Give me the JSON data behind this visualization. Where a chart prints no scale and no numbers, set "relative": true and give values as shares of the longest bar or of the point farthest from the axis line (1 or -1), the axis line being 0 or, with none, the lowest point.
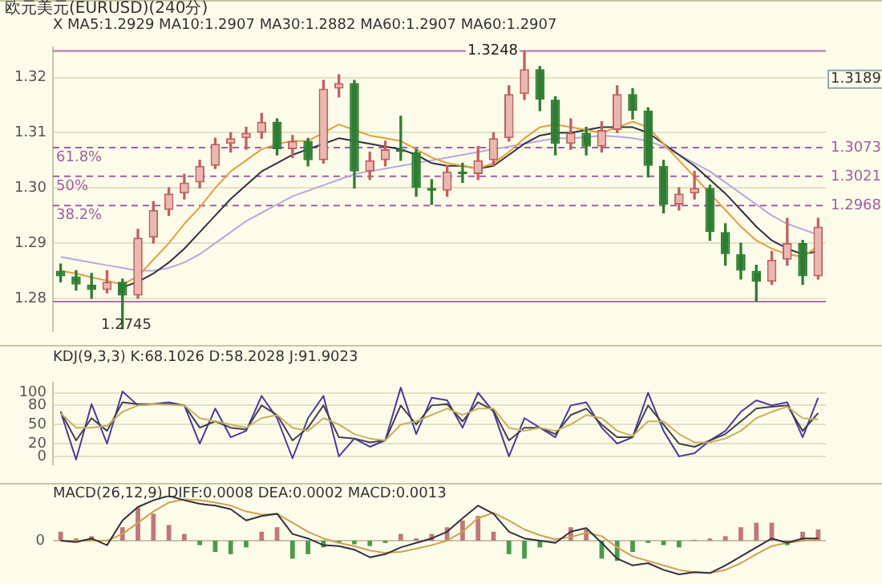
{
  "chart_data": [
    {
      "type": "candlestick",
      "title": "欧元美元(EURUSD)(240分)",
      "subtitle": "X MA5:1.2929 MA10:1.2907 MA30:1.2882 MA60:1.2907 MA60:1.2907",
      "categories": [
        null,
        null,
        null,
        null,
        null,
        null,
        null,
        null,
        null,
        null,
        null,
        null,
        null,
        null,
        null,
        null,
        null,
        null,
        null,
        null,
        null,
        null,
        null,
        null,
        null,
        null,
        null,
        null,
        null,
        null,
        null,
        null,
        null,
        null,
        null,
        null,
        null,
        null,
        null,
        null,
        null,
        null,
        null,
        null,
        null,
        null,
        null,
        null,
        null,
        null
      ],
      "ohlc": [
        [
          1.285,
          1.2862,
          1.283,
          1.284
        ],
        [
          1.284,
          1.285,
          1.2815,
          1.2825
        ],
        [
          1.2825,
          1.2845,
          1.28,
          1.2815
        ],
        [
          1.2815,
          1.285,
          1.281,
          1.283
        ],
        [
          1.283,
          1.2835,
          1.2745,
          1.2805
        ],
        [
          1.2805,
          1.2925,
          1.28,
          1.291
        ],
        [
          1.291,
          1.2975,
          1.29,
          1.296
        ],
        [
          1.296,
          1.3,
          1.295,
          1.299
        ],
        [
          1.299,
          1.3025,
          1.298,
          1.301
        ],
        [
          1.301,
          1.305,
          1.3,
          1.304
        ],
        [
          1.304,
          1.309,
          1.3035,
          1.308
        ],
        [
          1.308,
          1.31,
          1.3065,
          1.309
        ],
        [
          1.309,
          1.311,
          1.307,
          1.31
        ],
        [
          1.31,
          1.3135,
          1.309,
          1.312
        ],
        [
          1.312,
          1.3125,
          1.306,
          1.307
        ],
        [
          1.307,
          1.3095,
          1.3055,
          1.3085
        ],
        [
          1.3085,
          1.309,
          1.304,
          1.305
        ],
        [
          1.305,
          1.3195,
          1.3045,
          1.318
        ],
        [
          1.318,
          1.3205,
          1.3165,
          1.319
        ],
        [
          1.319,
          1.3195,
          1.3,
          1.303
        ],
        [
          1.303,
          1.3065,
          1.3015,
          1.305
        ],
        [
          1.305,
          1.3085,
          1.304,
          1.307
        ],
        [
          1.307,
          1.313,
          1.305,
          1.3065
        ],
        [
          1.3065,
          1.307,
          1.2985,
          1.3
        ],
        [
          1.3,
          1.3015,
          1.297,
          1.2995
        ],
        [
          1.2995,
          1.304,
          1.2985,
          1.303
        ],
        [
          1.303,
          1.3045,
          1.301,
          1.3025
        ],
        [
          1.3025,
          1.3075,
          1.3015,
          1.305
        ],
        [
          1.305,
          1.31,
          1.304,
          1.309
        ],
        [
          1.309,
          1.3185,
          1.3085,
          1.317
        ],
        [
          1.317,
          1.3248,
          1.316,
          1.3215
        ],
        [
          1.3215,
          1.322,
          1.314,
          1.316
        ],
        [
          1.316,
          1.3165,
          1.306,
          1.308
        ],
        [
          1.308,
          1.3125,
          1.307,
          1.31
        ],
        [
          1.31,
          1.311,
          1.306,
          1.3075
        ],
        [
          1.3075,
          1.312,
          1.3065,
          1.3105
        ],
        [
          1.3105,
          1.3185,
          1.31,
          1.317
        ],
        [
          1.317,
          1.318,
          1.3125,
          1.314
        ],
        [
          1.314,
          1.3145,
          1.302,
          1.304
        ],
        [
          1.304,
          1.305,
          1.2955,
          1.297
        ],
        [
          1.297,
          1.3,
          1.296,
          1.299
        ],
        [
          1.299,
          1.303,
          1.298,
          1.3
        ],
        [
          1.3,
          1.3005,
          1.2905,
          1.292
        ],
        [
          1.292,
          1.2935,
          1.286,
          1.288
        ],
        [
          1.288,
          1.29,
          1.2835,
          1.285
        ],
        [
          1.285,
          1.286,
          1.2795,
          1.283
        ],
        [
          1.283,
          1.2885,
          1.2825,
          1.287
        ],
        [
          1.287,
          1.2945,
          1.286,
          1.29
        ],
        [
          1.29,
          1.2905,
          1.2825,
          1.284
        ],
        [
          1.284,
          1.2945,
          1.2835,
          1.293
        ]
      ],
      "series": [
        {
          "type": "line",
          "color": "#e0a040",
          "values": [
            1.285,
            1.2845,
            1.2838,
            1.2832,
            1.2825,
            1.284,
            1.287,
            1.29,
            1.2935,
            1.2965,
            1.3,
            1.303,
            1.305,
            1.307,
            1.308,
            1.3085,
            1.3085,
            1.31,
            1.3115,
            1.3105,
            1.3095,
            1.309,
            1.3085,
            1.307,
            1.3055,
            1.3045,
            1.304,
            1.3035,
            1.3045,
            1.3065,
            1.309,
            1.311,
            1.3115,
            1.311,
            1.3105,
            1.31,
            1.311,
            1.312,
            1.311,
            1.308,
            1.305,
            1.302,
            1.299,
            1.296,
            1.293,
            1.2905,
            1.289,
            1.288,
            1.2875,
            1.2895
          ]
        },
        {
          "type": "line",
          "color": "#303040",
          "values": [
            null,
            null,
            null,
            null,
            1.282,
            1.283,
            1.2845,
            1.2865,
            1.289,
            1.292,
            1.295,
            1.298,
            1.3005,
            1.303,
            1.3045,
            1.306,
            1.307,
            1.308,
            1.309,
            1.3085,
            1.308,
            1.3075,
            1.307,
            1.306,
            1.3045,
            1.304,
            1.304,
            1.3035,
            1.304,
            1.306,
            1.308,
            1.3095,
            1.31,
            1.31,
            1.3105,
            1.311,
            1.311,
            1.311,
            1.31,
            1.308,
            1.306,
            1.304,
            1.3015,
            1.299,
            1.296,
            1.293,
            1.2905,
            1.289,
            1.288,
            1.2885
          ]
        },
        {
          "type": "line",
          "color": "#b8a8e0",
          "values": [
            1.2875,
            1.287,
            1.2865,
            1.286,
            1.2855,
            1.285,
            1.285,
            1.2855,
            1.2865,
            1.288,
            1.29,
            1.292,
            1.294,
            1.2955,
            1.297,
            1.2985,
            1.2995,
            1.3005,
            1.3015,
            1.3025,
            1.303,
            1.3035,
            1.304,
            1.3045,
            1.305,
            1.3055,
            1.306,
            1.3065,
            1.307,
            1.3075,
            1.308,
            1.3085,
            1.309,
            1.309,
            1.3092,
            1.3095,
            1.3093,
            1.309,
            1.3085,
            1.3075,
            1.306,
            1.3045,
            1.303,
            1.301,
            1.299,
            1.297,
            1.295,
            1.2935,
            1.2925,
            1.2915
          ]
        }
      ],
      "ylim": [
        1.274,
        1.3255
      ],
      "yticks": [
        1.28,
        1.29,
        {
          "value": 1.3,
          "label": "1.30"
        },
        1.31,
        1.32
      ],
      "grid": "y",
      "ref_lines": [
        {
          "axis": "y",
          "value": 1.3248,
          "color": "#b070b0",
          "line_style": "solid"
        },
        {
          "axis": "y",
          "value": 1.2794,
          "color": "#b070b0",
          "line_style": "solid"
        },
        {
          "axis": "y",
          "value": 1.3073,
          "label": "1.3073",
          "color": "#a060a0",
          "line_style": "dashed"
        },
        {
          "axis": "y",
          "value": 1.3021,
          "label": "1.3021",
          "color": "#a060a0",
          "line_style": "dashed"
        },
        {
          "axis": "y",
          "value": 1.2968,
          "label": "1.2968",
          "color": "#a060a0",
          "line_style": "dashed"
        }
      ],
      "annotations": [
        {
          "text": "1.3248",
          "y": 1.3248
        },
        "61.8%",
        "50%",
        "38.2%",
        "1.2745",
        "1.3189"
      ]
    },
    {
      "type": "line",
      "title": "KDJ(9,3,3) K:68.1026 D:58.2028 J:91.9023",
      "categories": [
        null,
        null,
        null,
        null,
        null,
        null,
        null,
        null,
        null,
        null,
        null,
        null,
        null,
        null,
        null,
        null,
        null,
        null,
        null,
        null,
        null,
        null,
        null,
        null,
        null,
        null,
        null,
        null,
        null,
        null,
        null,
        null,
        null,
        null,
        null,
        null,
        null,
        null,
        null,
        null,
        null,
        null,
        null,
        null,
        null,
        null,
        null,
        null,
        null,
        null
      ],
      "series": [
        {
          "color": "#c8b060",
          "values": [
            68,
            45,
            45,
            48,
            70,
            80,
            82,
            81,
            80,
            60,
            55,
            50,
            45,
            60,
            65,
            45,
            40,
            60,
            50,
            35,
            28,
            25,
            50,
            55,
            65,
            75,
            65,
            75,
            75,
            45,
            40,
            45,
            40,
            50,
            65,
            60,
            40,
            32,
            55,
            55,
            35,
            22,
            22,
            28,
            40,
            60,
            70,
            78,
            60,
            58
          ]
        },
        {
          "color": "#404050",
          "values": [
            70,
            25,
            60,
            40,
            85,
            82,
            82,
            82,
            80,
            45,
            55,
            45,
            42,
            80,
            65,
            25,
            45,
            80,
            30,
            28,
            22,
            25,
            80,
            50,
            80,
            82,
            55,
            85,
            72,
            25,
            45,
            45,
            35,
            65,
            75,
            50,
            30,
            30,
            80,
            50,
            20,
            15,
            25,
            35,
            55,
            75,
            78,
            80,
            40,
            68
          ]
        },
        {
          "color": "#4a3a9a",
          "values": [
            70,
            -5,
            82,
            20,
            102,
            80,
            82,
            85,
            80,
            20,
            75,
            30,
            40,
            95,
            60,
            -3,
            60,
            95,
            0,
            28,
            15,
            25,
            108,
            35,
            92,
            88,
            45,
            100,
            70,
            0,
            60,
            45,
            30,
            80,
            85,
            45,
            20,
            30,
            100,
            40,
            0,
            5,
            25,
            40,
            70,
            88,
            80,
            85,
            30,
            92
          ]
        }
      ],
      "ylim": [
        -13,
        116
      ],
      "yticks": [
        0,
        20,
        50,
        80,
        100
      ],
      "grid": "y"
    },
    {
      "type": "bar",
      "title": "MACD(26,12,9) DIFF:0.0008 DEA:0.0002 MACD:0.0013",
      "relative": true,
      "categories": [
        null,
        null,
        null,
        null,
        null,
        null,
        null,
        null,
        null,
        null,
        null,
        null,
        null,
        null,
        null,
        null,
        null,
        null,
        null,
        null,
        null,
        null,
        null,
        null,
        null,
        null,
        null,
        null,
        null,
        null,
        null,
        null,
        null,
        null,
        null,
        null,
        null,
        null,
        null,
        null,
        null,
        null,
        null,
        null,
        null,
        null,
        null,
        null,
        null,
        null
      ],
      "series": [
        {
          "type": "bar",
          "colors": [
            "#c07878",
            "#c07878",
            "#c07878",
            "#c07878",
            "#c07878",
            "#c07878",
            "#c07878",
            "#c07878",
            "#c07878",
            "#4c9a4c",
            "#4c9a4c",
            "#4c9a4c",
            "#4c9a4c",
            "#c07878",
            "#c07878",
            "#4c9a4c",
            "#4c9a4c",
            "#4c9a4c",
            "#4c9a4c",
            "#4c9a4c",
            "#4c9a4c",
            "#4c9a4c",
            "#c07878",
            "#c07878",
            "#c07878",
            "#c07878",
            "#c07878",
            "#c07878",
            "#c07878",
            "#4c9a4c",
            "#4c9a4c",
            "#4c9a4c",
            "#4c9a4c",
            "#c07878",
            "#c07878",
            "#4c9a4c",
            "#4c9a4c",
            "#4c9a4c",
            "#4c9a4c",
            "#4c9a4c",
            "#4c9a4c",
            "#c07878",
            "#c07878",
            "#c07878",
            "#c07878",
            "#c07878",
            "#c07878",
            "#4c9a4c",
            "#c07878",
            "#c07878"
          ],
          "values": [
            0.2,
            0.05,
            0.1,
            null,
            0.3,
            0.74,
            0.6,
            0.35,
            0.15,
            -0.1,
            -0.25,
            -0.3,
            -0.15,
            0.2,
            0.3,
            -0.4,
            -0.3,
            -0.15,
            -0.05,
            -0.08,
            -0.12,
            -0.05,
            0.15,
            0.05,
            0.15,
            0.3,
            0.45,
            0.55,
            0.2,
            -0.3,
            -0.4,
            -0.15,
            null,
            0.3,
            0.25,
            -0.4,
            -0.45,
            -0.25,
            -0.05,
            -0.1,
            -0.15,
            0.02,
            0.05,
            0.1,
            0.3,
            0.4,
            0.4,
            -0.1,
            0.2,
            0.25
          ]
        },
        {
          "type": "line",
          "color": "#303040",
          "values": [
            0,
            -0.03,
            0.05,
            -0.1,
            0.45,
            0.75,
            0.9,
            1,
            0.9,
            0.82,
            0.78,
            0.7,
            0.45,
            0.55,
            0.6,
            0.15,
            0.05,
            -0.1,
            -0.12,
            -0.2,
            -0.37,
            -0.3,
            -0.15,
            -0.05,
            0.05,
            0.2,
            0.5,
            0.78,
            0.6,
            0.2,
            0.05,
            0,
            -0.05,
            0.2,
            0.28,
            -0.05,
            -0.4,
            -0.55,
            -0.5,
            -0.65,
            -0.75,
            -0.7,
            -0.72,
            -0.55,
            -0.35,
            -0.15,
            0.05,
            -0.05,
            0.05,
            0.05
          ]
        },
        {
          "type": "line",
          "color": "#d0a050",
          "values": [
            0,
            0,
            0,
            0,
            0.15,
            0.4,
            0.65,
            0.85,
            0.92,
            0.9,
            0.85,
            0.78,
            0.65,
            0.58,
            0.6,
            0.4,
            0.2,
            0.05,
            -0.05,
            -0.12,
            -0.22,
            -0.27,
            -0.25,
            -0.18,
            -0.1,
            0,
            0.2,
            0.5,
            0.62,
            0.45,
            0.25,
            0.12,
            0.03,
            0.08,
            0.18,
            0.1,
            -0.15,
            -0.35,
            -0.45,
            -0.55,
            -0.65,
            -0.7,
            -0.72,
            -0.65,
            -0.5,
            -0.3,
            -0.12,
            -0.05,
            0,
            0.02
          ]
        }
      ],
      "ref_lines": [
        {
          "axis": "y",
          "value": 0,
          "label": "0",
          "color": "#c8c4a8",
          "line_style": "solid"
        }
      ]
    }
  ]
}
